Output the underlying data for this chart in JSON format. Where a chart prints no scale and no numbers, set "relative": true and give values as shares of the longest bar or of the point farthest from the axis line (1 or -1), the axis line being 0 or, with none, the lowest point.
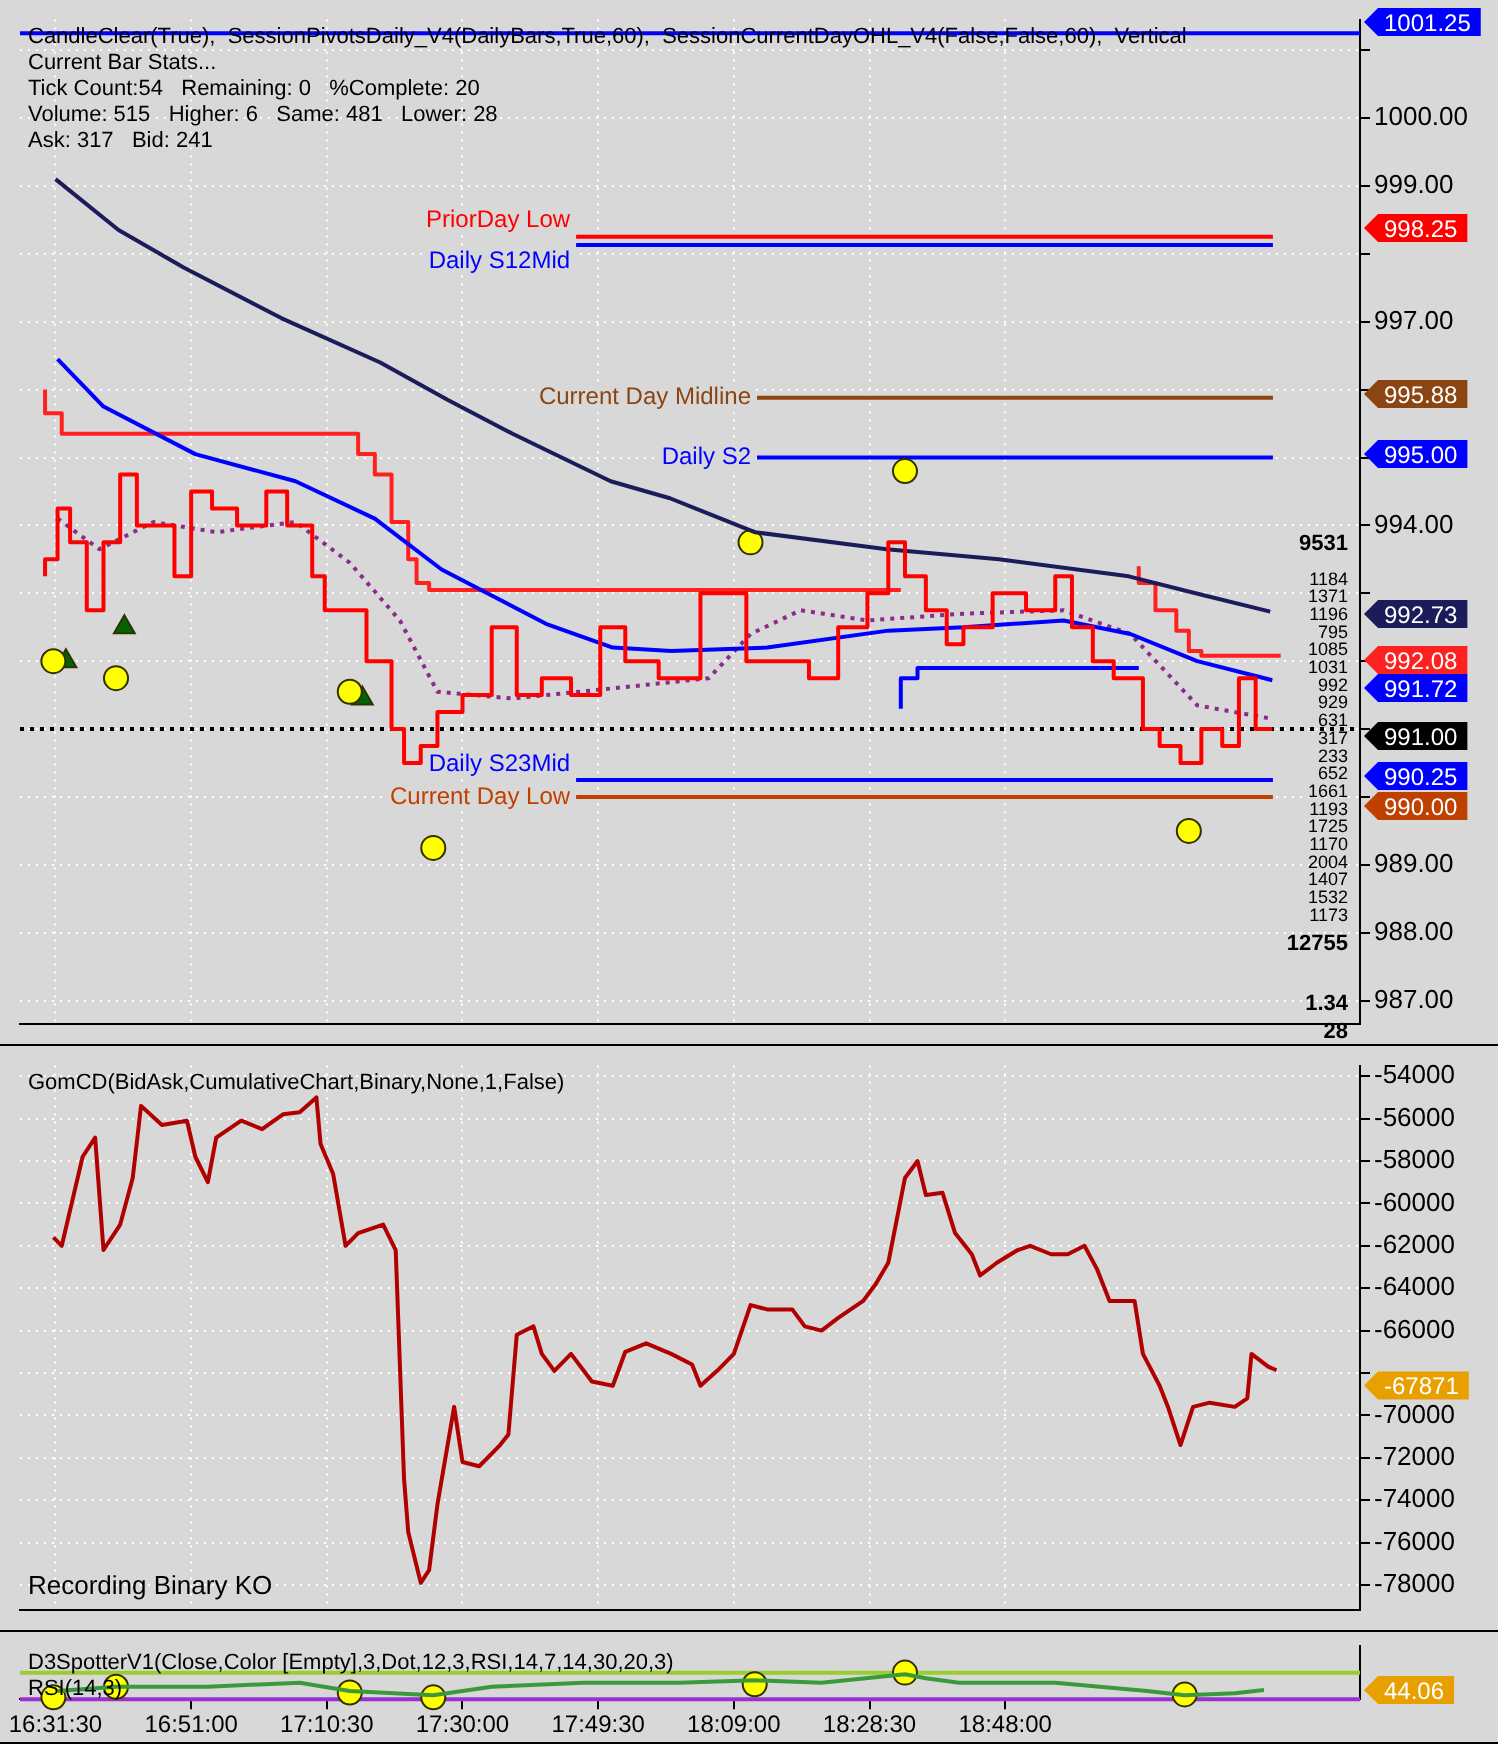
{
  "chart_data": [
    {
      "type": "line",
      "xlim": [
        16.44,
        19.65
      ],
      "ylim": [
        986.65,
        1001.45
      ],
      "xticks": [
        {
          "value": 16.525,
          "label": null
        },
        {
          "value": 16.85,
          "label": null
        },
        {
          "value": 17.175,
          "label": null
        },
        {
          "value": 17.5,
          "label": null
        },
        {
          "value": 17.825,
          "label": null
        },
        {
          "value": 18.15,
          "label": null
        },
        {
          "value": 18.475,
          "label": null
        },
        {
          "value": 18.8,
          "label": null
        }
      ],
      "yticks": [
        {
          "value": 987,
          "label": "987.00"
        },
        {
          "value": 988,
          "label": "988.00"
        },
        {
          "value": 989,
          "label": "989.00"
        },
        {
          "value": 990,
          "label": null
        },
        {
          "value": 991,
          "label": null
        },
        {
          "value": 992,
          "label": null
        },
        {
          "value": 993,
          "label": null
        },
        {
          "value": 994,
          "label": "994.00"
        },
        {
          "value": 995,
          "label": null
        },
        {
          "value": 996,
          "label": null
        },
        {
          "value": 997,
          "label": "997.00"
        },
        {
          "value": 998,
          "label": null
        },
        {
          "value": 999,
          "label": "999.00"
        },
        {
          "value": 1000,
          "label": "1000.00"
        },
        {
          "value": 1001,
          "label": null
        }
      ],
      "tick_labels": "y",
      "grid": true,
      "series": [
        {
          "type": "step",
          "color": "#ff0000",
          "x": [
            16.5,
            16.53,
            16.56,
            16.6,
            16.64,
            16.68,
            16.72,
            16.76,
            16.81,
            16.85,
            16.9,
            16.96,
            17.03,
            17.08,
            17.14,
            17.17,
            17.2,
            17.27,
            17.33,
            17.36,
            17.4,
            17.44,
            17.5,
            17.57,
            17.63,
            17.69,
            17.76,
            17.83,
            17.89,
            17.97,
            18.07,
            18.18,
            18.26,
            18.33,
            18.4,
            18.47,
            18.52,
            18.56,
            18.61,
            18.66,
            18.7,
            18.77,
            18.85,
            18.92,
            18.96,
            19.01,
            19.06,
            19.13,
            19.17,
            19.22,
            19.27,
            19.32,
            19.36,
            19.4,
            19.44
          ],
          "values": [
            993.25,
            993.5,
            994.25,
            993.75,
            992.75,
            993.75,
            994.75,
            994,
            994,
            993.25,
            994.5,
            994.25,
            994,
            994.5,
            994,
            993.25,
            992.75,
            992.75,
            992,
            991,
            990.5,
            990.75,
            991.25,
            991.5,
            992.5,
            991.5,
            991.75,
            991.5,
            992.5,
            992,
            991.75,
            993,
            992,
            992,
            991.75,
            992.5,
            993,
            993.75,
            993.25,
            992.75,
            992.25,
            992.5,
            993,
            992.75,
            993.25,
            992.5,
            992,
            991.75,
            991,
            990.75,
            990.5,
            991,
            990.75,
            991.75,
            991
          ]
        },
        {
          "type": "line",
          "color": "#1c1c5a",
          "x": [
            16.525,
            16.676,
            16.832,
            17.067,
            17.303,
            17.464,
            17.62,
            17.855,
            17.997,
            18.2,
            18.516,
            18.785,
            19.096,
            19.256,
            19.435
          ],
          "values": [
            999.1,
            998.35,
            997.8,
            997.05,
            996.4,
            995.85,
            995.35,
            994.65,
            994.4,
            993.9,
            993.65,
            993.5,
            993.25,
            993.0,
            992.73
          ]
        },
        {
          "type": "line",
          "color": "#0000ff",
          "x": [
            16.53,
            16.64,
            16.86,
            17.1,
            17.29,
            17.45,
            17.7,
            17.86,
            18.0,
            18.23,
            18.52,
            18.7,
            18.94,
            19.1,
            19.26,
            19.44
          ],
          "values": [
            996.45,
            995.75,
            995.05,
            994.65,
            994.1,
            993.35,
            992.55,
            992.2,
            992.15,
            992.2,
            992.45,
            992.5,
            992.6,
            992.4,
            992.0,
            991.72
          ]
        },
        {
          "type": "line",
          "color": "#8b2b8b",
          "line_style": "dotted",
          "x": [
            16.53,
            16.63,
            16.76,
            16.91,
            17.1,
            17.23,
            17.35,
            17.44,
            17.62,
            17.86,
            18.09,
            18.19,
            18.31,
            18.47,
            18.7,
            18.94,
            19.1,
            19.26,
            19.44
          ],
          "values": [
            994.1,
            993.65,
            994.05,
            993.9,
            994.05,
            993.45,
            992.6,
            991.55,
            991.45,
            991.6,
            991.75,
            992.4,
            992.75,
            992.6,
            992.7,
            992.75,
            992.4,
            991.35,
            991.15
          ]
        },
        {
          "type": "step",
          "color": "#ff2020",
          "x": [
            16.5,
            16.54,
            17.25,
            17.29,
            17.33,
            17.37,
            17.39,
            17.42,
            17.48,
            18.55,
            18.56,
            19.12,
            19.16,
            19.21,
            19.24,
            19.27,
            19.46
          ],
          "values": [
            996.0,
            995.65,
            995.35,
            995.05,
            994.75,
            994.05,
            993.5,
            993.15,
            993.05,
            993.05,
            null,
            993.4,
            993.15,
            992.75,
            992.45,
            992.15,
            992.08
          ]
        },
        {
          "type": "step",
          "color": "#0000ff",
          "x": [
            18.55,
            18.59,
            18.64,
            19.12
          ],
          "values": [
            991.3,
            991.75,
            991.9,
            991.9
          ]
        },
        {
          "type": "scatter",
          "color": "#ffff00",
          "marker": "circle",
          "x": [
            16.52,
            16.67,
            17.23,
            17.43,
            18.19,
            18.56,
            19.24
          ],
          "values": [
            992,
            991.75,
            991.55,
            989.25,
            993.75,
            994.8,
            989.5
          ]
        },
        {
          "type": "scatter",
          "color": "#006400",
          "marker": "triangle",
          "x": [
            16.55,
            16.69,
            17.26
          ],
          "values": [
            992.0,
            992.5,
            991.45
          ]
        }
      ],
      "ref_lines": [
        {
          "axis": "y",
          "value": 1001.25,
          "label": null,
          "color": "#0000ff"
        },
        {
          "axis": "y",
          "value": 998.13,
          "label": "Daily S12Mid",
          "color": "#0000ff"
        },
        {
          "axis": "y",
          "value": 998.25,
          "label": "PriorDay Low",
          "color": "#ff0000"
        },
        {
          "axis": "y",
          "value": 995.88,
          "label": "Current Day Midline",
          "color": "#8b4513"
        },
        {
          "axis": "y",
          "value": 995.0,
          "label": "Daily S2",
          "color": "#0000ff"
        },
        {
          "axis": "y",
          "value": 991.0,
          "label": null,
          "color": "#000000",
          "line_style": "dotted"
        },
        {
          "axis": "y",
          "value": 990.25,
          "label": "Daily S23Mid",
          "color": "#0000ff"
        },
        {
          "axis": "y",
          "value": 990.0,
          "label": "Current Day Low",
          "color": "#c04000"
        }
      ],
      "annotations": [
        "CandleClear(True),  SessionPivotsDaily_V4(DailyBars,True,60),  SessionCurrentDayOHL_V4(False,False,60),  Vertical",
        "Current Bar Stats...",
        "Tick Count:54   Remaining: 0   %Complete: 20",
        "Volume: 515   Higher: 6   Same: 481   Lower: 28",
        "Ask: 317   Bid: 241",
        "9531",
        "1184",
        "1371",
        "1196",
        "795",
        "1085",
        "1031",
        "992",
        "929",
        "631",
        "317",
        "233",
        "652",
        "1661",
        "1193",
        "1725",
        "1170",
        "2004",
        "1407",
        "1532",
        "1173",
        "12755",
        "1.34",
        "28",
        "1001.25",
        "998.25",
        "995.88",
        "995.00",
        "992.73",
        "992.08",
        "991.72",
        "991.00",
        "990.25",
        "990.00"
      ]
    },
    {
      "type": "line",
      "xlim": [
        16.44,
        19.65
      ],
      "ylim": [
        -79200,
        -53500
      ],
      "xticks": [
        {
          "value": 16.525,
          "label": null
        },
        {
          "value": 16.85,
          "label": null
        },
        {
          "value": 17.175,
          "label": null
        },
        {
          "value": 17.5,
          "label": null
        },
        {
          "value": 17.825,
          "label": null
        },
        {
          "value": 18.15,
          "label": null
        },
        {
          "value": 18.475,
          "label": null
        },
        {
          "value": 18.8,
          "label": null
        }
      ],
      "yticks": [
        -54000,
        -56000,
        -58000,
        -60000,
        -62000,
        -64000,
        -66000,
        {
          "value": -68000,
          "label": null
        },
        -70000,
        -72000,
        -74000,
        -76000,
        -78000
      ],
      "tick_labels": "y",
      "grid": true,
      "series": [
        {
          "type": "line",
          "color": "#b00000",
          "x": [
            16.52,
            16.54,
            16.59,
            16.62,
            16.64,
            16.68,
            16.71,
            16.73,
            16.78,
            16.84,
            16.86,
            16.89,
            16.91,
            16.97,
            17.02,
            17.07,
            17.11,
            17.15,
            17.16,
            17.19,
            17.22,
            17.25,
            17.31,
            17.34,
            17.36,
            17.37,
            17.4,
            17.42,
            17.44,
            17.48,
            17.5,
            17.54,
            17.59,
            17.61,
            17.63,
            17.67,
            17.69,
            17.72,
            17.76,
            17.81,
            17.86,
            17.89,
            17.94,
            18.0,
            18.05,
            18.07,
            18.11,
            18.15,
            18.19,
            18.23,
            18.29,
            18.32,
            18.36,
            18.4,
            18.46,
            18.49,
            18.52,
            18.56,
            18.59,
            18.61,
            18.65,
            18.68,
            18.72,
            18.74,
            18.78,
            18.83,
            18.86,
            18.91,
            18.95,
            18.99,
            19.02,
            19.05,
            19.11,
            19.13,
            19.17,
            19.19,
            19.22,
            19.25,
            19.29,
            19.35,
            19.38,
            19.39,
            19.43,
            19.45
          ],
          "values": [
            -61600,
            -62000,
            -57800,
            -56900,
            -62200,
            -61000,
            -58800,
            -55400,
            -56300,
            -56100,
            -57800,
            -59000,
            -56900,
            -56100,
            -56500,
            -55800,
            -55700,
            -55000,
            -57200,
            -58600,
            -62000,
            -61400,
            -61000,
            -62200,
            -73000,
            -75500,
            -77900,
            -77300,
            -74200,
            -69600,
            -72200,
            -72400,
            -71400,
            -70900,
            -66200,
            -65800,
            -67100,
            -67900,
            -67100,
            -68400,
            -68600,
            -67000,
            -66600,
            -67100,
            -67600,
            -68600,
            -67900,
            -67100,
            -64800,
            -65000,
            -65000,
            -65800,
            -66000,
            -65400,
            -64600,
            -63800,
            -62800,
            -58800,
            -58000,
            -59600,
            -59500,
            -61400,
            -62400,
            -63400,
            -62800,
            -62200,
            -62000,
            -62400,
            -62400,
            -62000,
            -63100,
            -64600,
            -64600,
            -67100,
            -68600,
            -69600,
            -71400,
            -69600,
            -69400,
            -69600,
            -69200,
            -67100,
            -67700,
            -67871
          ]
        }
      ],
      "annotations": [
        "GomCD(BidAsk,CumulativeChart,Binary,None,1,False)",
        "Recording Binary KO",
        "-67871"
      ]
    },
    {
      "type": "line",
      "relative": true,
      "xlim": [
        16.44,
        19.65
      ],
      "xticks": [
        {
          "value": 16.525,
          "label": "16:31:30"
        },
        {
          "value": 16.85,
          "label": "16:51:00"
        },
        {
          "value": 17.175,
          "label": "17:10:30"
        },
        {
          "value": 17.5,
          "label": "17:30:00"
        },
        {
          "value": 17.825,
          "label": "17:49:30"
        },
        {
          "value": 18.15,
          "label": "18:09:00"
        },
        {
          "value": 18.475,
          "label": "18:28:30"
        },
        {
          "value": 18.8,
          "label": "18:48:00"
        }
      ],
      "tick_labels": "x",
      "series": [
        {
          "type": "line",
          "color": "#3a9a3a",
          "x": [
            16.53,
            16.67,
            16.89,
            17.11,
            17.23,
            17.43,
            17.57,
            17.79,
            18.02,
            18.2,
            18.36,
            18.56,
            18.61,
            18.69,
            18.92,
            19.14,
            19.23,
            19.35,
            19.42
          ],
          "values": [
            0.31,
            0.47,
            0.47,
            0.62,
            0.31,
            0.15,
            0.47,
            0.62,
            0.62,
            0.71,
            0.62,
            0.94,
            0.79,
            0.62,
            0.62,
            0.31,
            0.15,
            0.22,
            0.35
          ]
        },
        {
          "type": "scatter",
          "color": "#ffff00",
          "marker": "circle",
          "x": [
            16.52,
            16.67,
            17.23,
            17.43,
            18.2,
            18.56,
            19.23
          ],
          "values": [
            0.07,
            0.47,
            0.25,
            0.07,
            0.56,
            1,
            0.18
          ]
        }
      ],
      "ref_lines": [
        {
          "axis": "y",
          "value": 0.99,
          "label": null,
          "color": "#9acd32"
        },
        {
          "axis": "y",
          "value": 0,
          "label": null,
          "color": "#9932cc"
        }
      ],
      "annotations": [
        "D3SpotterV1(Close,Color [Empty],3,Dot,12,3,RSI,14,7,14,30,20,3)",
        "RSI(14,3)",
        "44.06"
      ]
    }
  ]
}
